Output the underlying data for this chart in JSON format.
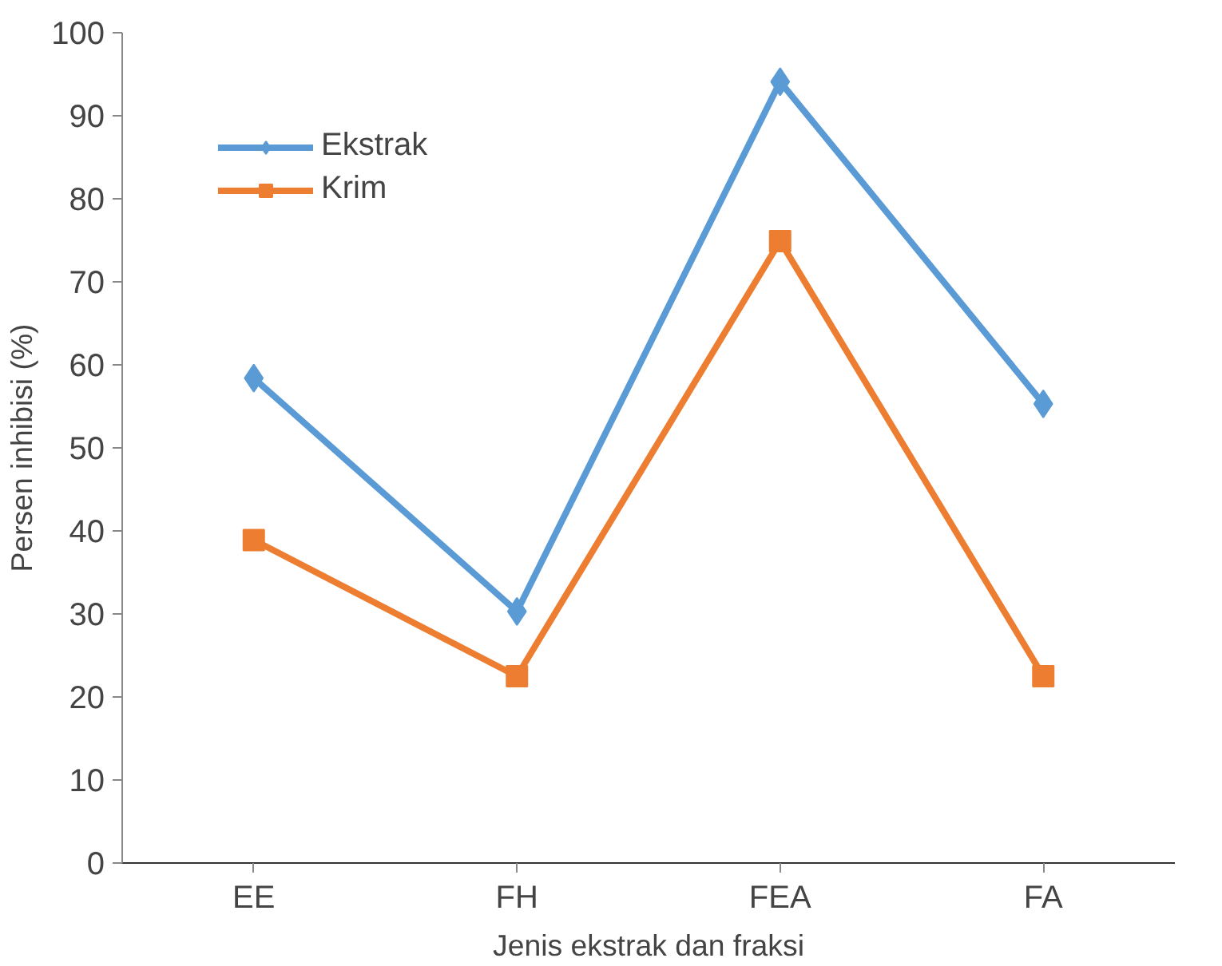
{
  "chart_data": {
    "type": "line",
    "xlabel": "Jenis ekstrak dan fraksi",
    "ylabel": "Persen inhibisi (%)",
    "categories": [
      "EE",
      "FH",
      "FEA",
      "FA"
    ],
    "series": [
      {
        "name": "Ekstrak",
        "color": "#5b9bd5",
        "marker": "diamond",
        "values": [
          58.4,
          30.3,
          94.1,
          55.3
        ]
      },
      {
        "name": "Krim",
        "color": "#ed7d31",
        "marker": "square",
        "values": [
          38.9,
          22.5,
          74.9,
          22.5
        ]
      }
    ],
    "ylim": [
      0,
      100
    ],
    "yticks": [
      0,
      10,
      20,
      30,
      40,
      50,
      60,
      70,
      80,
      90,
      100
    ],
    "grid": false,
    "legend": "top left",
    "line_style": "solid"
  }
}
